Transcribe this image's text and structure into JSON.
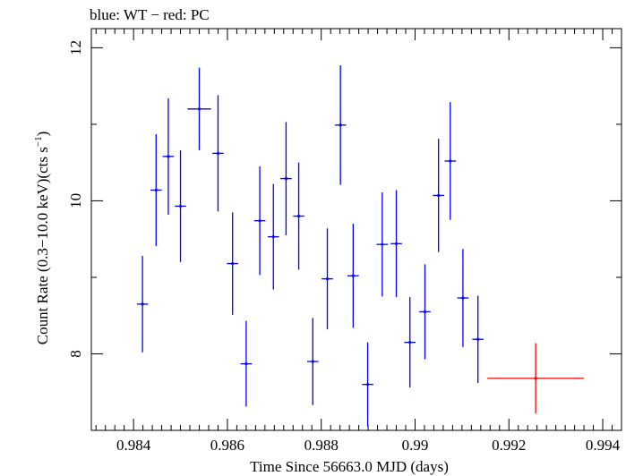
{
  "chart_data": {
    "type": "scatter",
    "title": "blue: WT − red: PC",
    "xlabel": "Time Since 56663.0 MJD (days)",
    "ylabel_main": "Count Rate (0.3−10.0 keV)(cts s",
    "ylabel_sup": "−1",
    "ylabel_close": ")",
    "xlim": [
      0.9831,
      0.9944
    ],
    "ylim": [
      7.0,
      12.25
    ],
    "xticks": [
      0.984,
      0.986,
      0.988,
      0.99,
      0.992,
      0.994
    ],
    "xtick_labels": [
      "0.984",
      "0.986",
      "0.988",
      "0.99",
      "0.992",
      "0.994"
    ],
    "yticks": [
      8,
      10,
      12
    ],
    "ytick_labels": [
      "8",
      "10",
      "12"
    ],
    "series": [
      {
        "color": "#0000ff",
        "points": [
          {
            "x": 0.98419,
            "y": 8.65,
            "xerr": 0.00012,
            "yerr": 0.63
          },
          {
            "x": 0.98448,
            "y": 10.14,
            "xerr": 0.00012,
            "yerr": 0.73
          },
          {
            "x": 0.98474,
            "y": 10.58,
            "xerr": 0.00012,
            "yerr": 0.76
          },
          {
            "x": 0.985,
            "y": 9.93,
            "xerr": 0.00012,
            "yerr": 0.73
          },
          {
            "x": 0.9854,
            "y": 11.2,
            "xerr": 0.00025,
            "yerr": 0.54
          },
          {
            "x": 0.9858,
            "y": 10.62,
            "xerr": 0.00012,
            "yerr": 0.76
          },
          {
            "x": 0.98611,
            "y": 9.18,
            "xerr": 0.00012,
            "yerr": 0.67
          },
          {
            "x": 0.9864,
            "y": 7.87,
            "xerr": 0.00012,
            "yerr": 0.56
          },
          {
            "x": 0.98669,
            "y": 9.74,
            "xerr": 0.00012,
            "yerr": 0.71
          },
          {
            "x": 0.98698,
            "y": 9.53,
            "xerr": 0.00012,
            "yerr": 0.69
          },
          {
            "x": 0.98725,
            "y": 10.29,
            "xerr": 0.00012,
            "yerr": 0.74
          },
          {
            "x": 0.98752,
            "y": 9.8,
            "xerr": 0.00012,
            "yerr": 0.7
          },
          {
            "x": 0.98782,
            "y": 7.9,
            "xerr": 0.00012,
            "yerr": 0.57
          },
          {
            "x": 0.98813,
            "y": 8.98,
            "xerr": 0.00012,
            "yerr": 0.66
          },
          {
            "x": 0.98841,
            "y": 10.99,
            "xerr": 0.00012,
            "yerr": 0.78
          },
          {
            "x": 0.98868,
            "y": 9.02,
            "xerr": 0.00012,
            "yerr": 0.68
          },
          {
            "x": 0.98899,
            "y": 7.6,
            "xerr": 0.00012,
            "yerr": 0.55
          },
          {
            "x": 0.9893,
            "y": 9.43,
            "xerr": 0.00012,
            "yerr": 0.68
          },
          {
            "x": 0.9896,
            "y": 9.44,
            "xerr": 0.00012,
            "yerr": 0.7
          },
          {
            "x": 0.98989,
            "y": 8.15,
            "xerr": 0.00012,
            "yerr": 0.59
          },
          {
            "x": 0.99021,
            "y": 8.55,
            "xerr": 0.00012,
            "yerr": 0.62
          },
          {
            "x": 0.9905,
            "y": 10.07,
            "xerr": 0.00012,
            "yerr": 0.74
          },
          {
            "x": 0.99075,
            "y": 10.52,
            "xerr": 0.00012,
            "yerr": 0.77
          },
          {
            "x": 0.99102,
            "y": 8.73,
            "xerr": 0.00012,
            "yerr": 0.64
          },
          {
            "x": 0.99134,
            "y": 8.19,
            "xerr": 0.00012,
            "yerr": 0.57
          }
        ]
      },
      {
        "color": "#ff0000",
        "points": [
          {
            "x": 0.99257,
            "y": 7.68,
            "xerr": 0.00103,
            "yerr": 0.46
          }
        ]
      }
    ]
  }
}
